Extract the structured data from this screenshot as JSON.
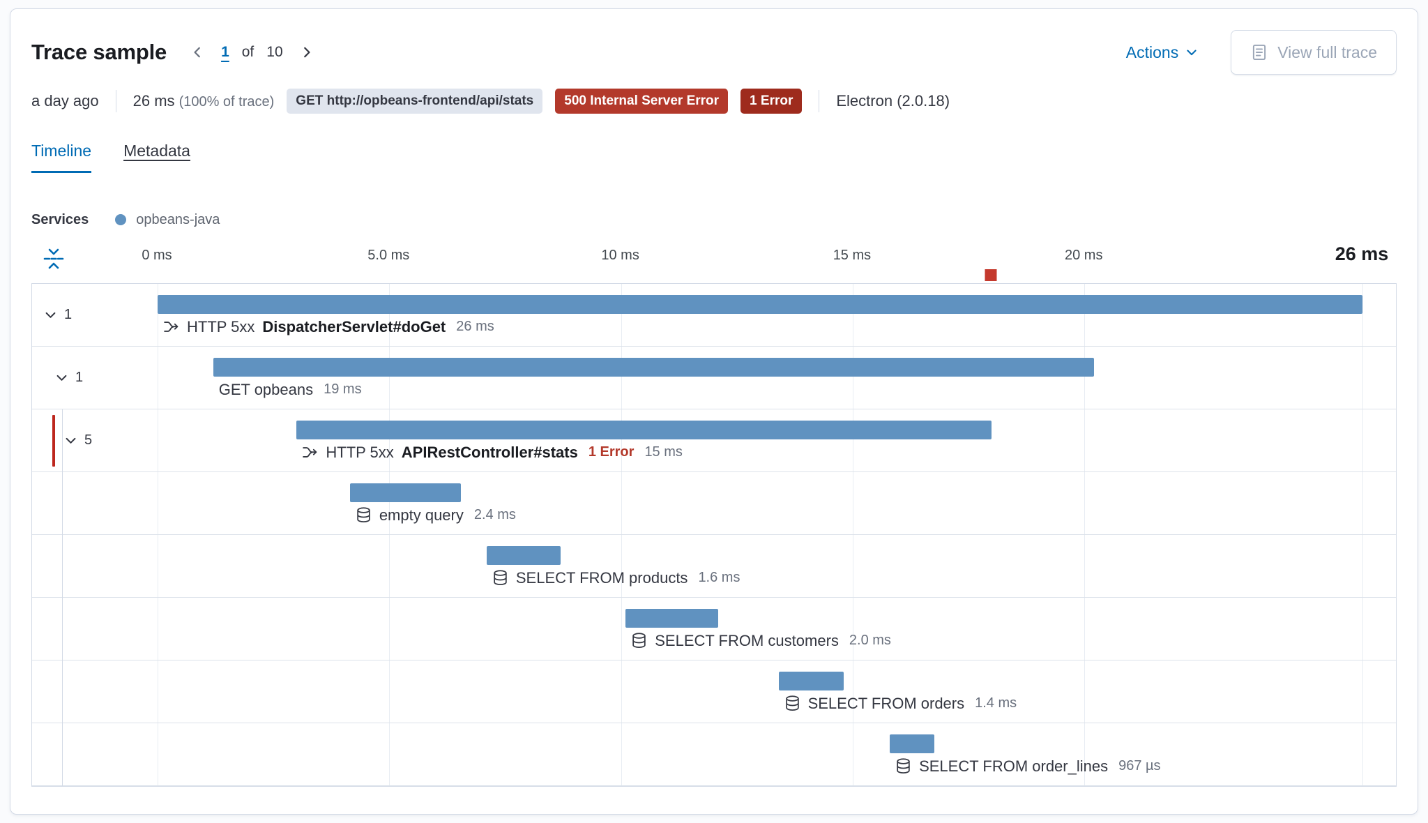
{
  "header": {
    "title": "Trace sample",
    "pagination": {
      "current": "1",
      "of_label": "of",
      "total": "10"
    },
    "actions_label": "Actions",
    "view_full_trace_label": "View full trace"
  },
  "summary": {
    "timestamp": "a day ago",
    "duration": "26 ms",
    "duration_percent": "(100% of trace)",
    "request_badge": "GET http://opbeans-frontend/api/stats",
    "status_badge": "500 Internal Server Error",
    "error_count_badge": "1 Error",
    "agent": "Electron",
    "agent_version": "(2.0.18)"
  },
  "tabs": {
    "timeline": "Timeline",
    "metadata": "Metadata",
    "active": "Timeline"
  },
  "legend": {
    "title": "Services",
    "service_label": "opbeans-java",
    "service_color": "#6092C0"
  },
  "chart_data": {
    "type": "waterfall",
    "unit": "ms",
    "total_ms": 26,
    "x_ticks": [
      {
        "label": "0 ms",
        "ms": 0
      },
      {
        "label": "5.0 ms",
        "ms": 5
      },
      {
        "label": "10 ms",
        "ms": 10
      },
      {
        "label": "15 ms",
        "ms": 15
      },
      {
        "label": "20 ms",
        "ms": 20
      }
    ],
    "x_end": {
      "label": "26 ms",
      "ms": 26
    },
    "error_marker_ms": 18,
    "bar_color": "#6092C0",
    "error_color": "#B3392B",
    "rows": [
      {
        "depth": 0,
        "toggle_count": "1",
        "icon": "transaction",
        "type_label": "HTTP 5xx",
        "name": "DispatcherServlet#doGet",
        "bold": true,
        "duration_label": "26 ms",
        "start_ms": 0,
        "duration_ms": 26
      },
      {
        "depth": 1,
        "toggle_count": "1",
        "icon": null,
        "type_label": null,
        "name": "GET opbeans",
        "bold": false,
        "duration_label": "19 ms",
        "start_ms": 1.2,
        "duration_ms": 19
      },
      {
        "depth": 2,
        "toggle_count": "5",
        "icon": "transaction",
        "type_label": "HTTP 5xx",
        "name": "APIRestController#stats",
        "bold": true,
        "error_label": "1 Error",
        "duration_label": "15 ms",
        "start_ms": 3.0,
        "duration_ms": 15,
        "has_error": true
      },
      {
        "depth": 3,
        "icon": "database",
        "name": "empty query",
        "bold": false,
        "duration_label": "2.4 ms",
        "start_ms": 4.15,
        "duration_ms": 2.4
      },
      {
        "depth": 3,
        "icon": "database",
        "name": "SELECT FROM products",
        "bold": false,
        "duration_label": "1.6 ms",
        "start_ms": 7.1,
        "duration_ms": 1.6
      },
      {
        "depth": 3,
        "icon": "database",
        "name": "SELECT FROM customers",
        "bold": false,
        "duration_label": "2.0 ms",
        "start_ms": 10.1,
        "duration_ms": 2.0
      },
      {
        "depth": 3,
        "icon": "database",
        "name": "SELECT FROM orders",
        "bold": false,
        "duration_label": "1.4 ms",
        "start_ms": 13.4,
        "duration_ms": 1.4
      },
      {
        "depth": 3,
        "icon": "database",
        "name": "SELECT FROM order_lines",
        "bold": false,
        "duration_label": "967 µs",
        "start_ms": 15.8,
        "duration_ms": 0.967
      }
    ]
  },
  "colors": {
    "primary": "#006BB4",
    "bar": "#6092C0",
    "danger_badge": "#B3392B",
    "danger_dark": "#9E2B1D",
    "error_marker": "#C4392D",
    "text": "#343741",
    "subdued": "#69707D",
    "border": "#D3DAE6"
  }
}
